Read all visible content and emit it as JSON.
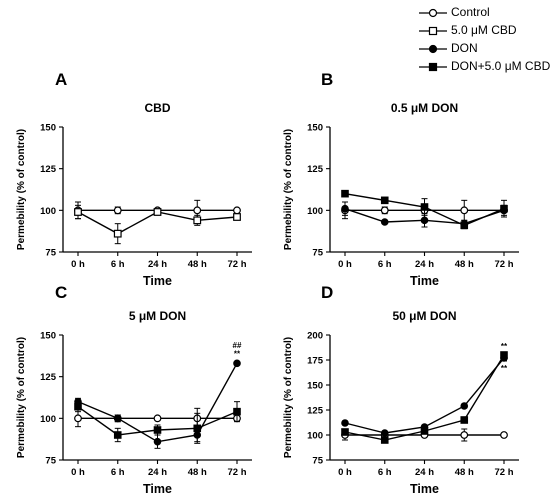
{
  "legend": {
    "items": [
      {
        "label": "Control",
        "marker": "circle-open"
      },
      {
        "label": "5.0 μM CBD",
        "marker": "square-open"
      },
      {
        "label": "DON",
        "marker": "circle-filled"
      },
      {
        "label": "DON+5.0 μM CBD",
        "marker": "square-filled"
      }
    ]
  },
  "chart_data": [
    {
      "type": "line",
      "panel": "A",
      "title": "CBD",
      "xlabel": "Time",
      "ylabel": "Permebility (% of control)",
      "categories": [
        "0 h",
        "6 h",
        "24 h",
        "48 h",
        "72 h"
      ],
      "ylim": [
        75,
        150
      ],
      "yticks": [
        75,
        100,
        125,
        150
      ],
      "series": [
        {
          "marker": "circle-open",
          "values": [
            100,
            100,
            100,
            100,
            100
          ],
          "errors": [
            5,
            2,
            1,
            6,
            1
          ]
        },
        {
          "marker": "square-open",
          "values": [
            99,
            86,
            99,
            94,
            96
          ],
          "errors": [
            4,
            6,
            1,
            3,
            1
          ]
        }
      ],
      "annotations": []
    },
    {
      "type": "line",
      "panel": "B",
      "title": "0.5 μM DON",
      "xlabel": "Time",
      "ylabel": "Permebility (% of control)",
      "categories": [
        "0 h",
        "6 h",
        "24 h",
        "48 h",
        "72 h"
      ],
      "ylim": [
        75,
        150
      ],
      "yticks": [
        75,
        100,
        125,
        150
      ],
      "series": [
        {
          "marker": "circle-open",
          "values": [
            100,
            100,
            100,
            100,
            100
          ],
          "errors": [
            5,
            2,
            1,
            6,
            1
          ]
        },
        {
          "marker": "circle-filled",
          "values": [
            101,
            93,
            94,
            92,
            100
          ],
          "errors": [
            4,
            1,
            4,
            2,
            3
          ]
        },
        {
          "marker": "square-filled",
          "values": [
            110,
            106,
            102,
            91,
            101
          ],
          "errors": [
            1,
            1,
            5,
            2,
            5
          ]
        }
      ],
      "annotations": []
    },
    {
      "type": "line",
      "panel": "C",
      "title": "5 μM DON",
      "xlabel": "Time",
      "ylabel": "Permebility (% of control)",
      "categories": [
        "0 h",
        "6 h",
        "24 h",
        "48 h",
        "72 h"
      ],
      "ylim": [
        75,
        150
      ],
      "yticks": [
        75,
        100,
        125,
        150
      ],
      "series": [
        {
          "marker": "circle-open",
          "values": [
            100,
            100,
            100,
            100,
            100
          ],
          "errors": [
            5,
            2,
            1,
            6,
            1
          ]
        },
        {
          "marker": "circle-filled",
          "values": [
            110,
            100,
            86,
            90,
            133
          ],
          "errors": [
            2,
            2,
            4,
            4,
            1
          ]
        },
        {
          "marker": "square-filled",
          "values": [
            107,
            90,
            93,
            94,
            104
          ],
          "errors": [
            3,
            4,
            3,
            9,
            6
          ]
        }
      ],
      "annotations": [
        {
          "text": "##",
          "category": "72 h",
          "y": 144
        },
        {
          "text": "**",
          "category": "72 h",
          "y": 139
        }
      ]
    },
    {
      "type": "line",
      "panel": "D",
      "title": "50 μM DON",
      "xlabel": "Time",
      "ylabel": "Permebility (% of control)",
      "categories": [
        "0 h",
        "6 h",
        "24 h",
        "48 h",
        "72 h"
      ],
      "ylim": [
        75,
        200
      ],
      "yticks": [
        75,
        100,
        125,
        150,
        175,
        200
      ],
      "series": [
        {
          "marker": "circle-open",
          "values": [
            100,
            100,
            100,
            100,
            100
          ],
          "errors": [
            5,
            2,
            1,
            6,
            1
          ]
        },
        {
          "marker": "circle-filled",
          "values": [
            112,
            102,
            108,
            129,
            177
          ],
          "errors": [
            2,
            1,
            2,
            2,
            3
          ]
        },
        {
          "marker": "square-filled",
          "values": [
            103,
            95,
            104,
            115,
            180
          ],
          "errors": [
            2,
            2,
            2,
            2,
            3
          ]
        }
      ],
      "annotations": [
        {
          "text": "**",
          "category": "72 h",
          "y": 189
        },
        {
          "text": "**",
          "category": "72 h",
          "y": 167
        }
      ]
    }
  ]
}
